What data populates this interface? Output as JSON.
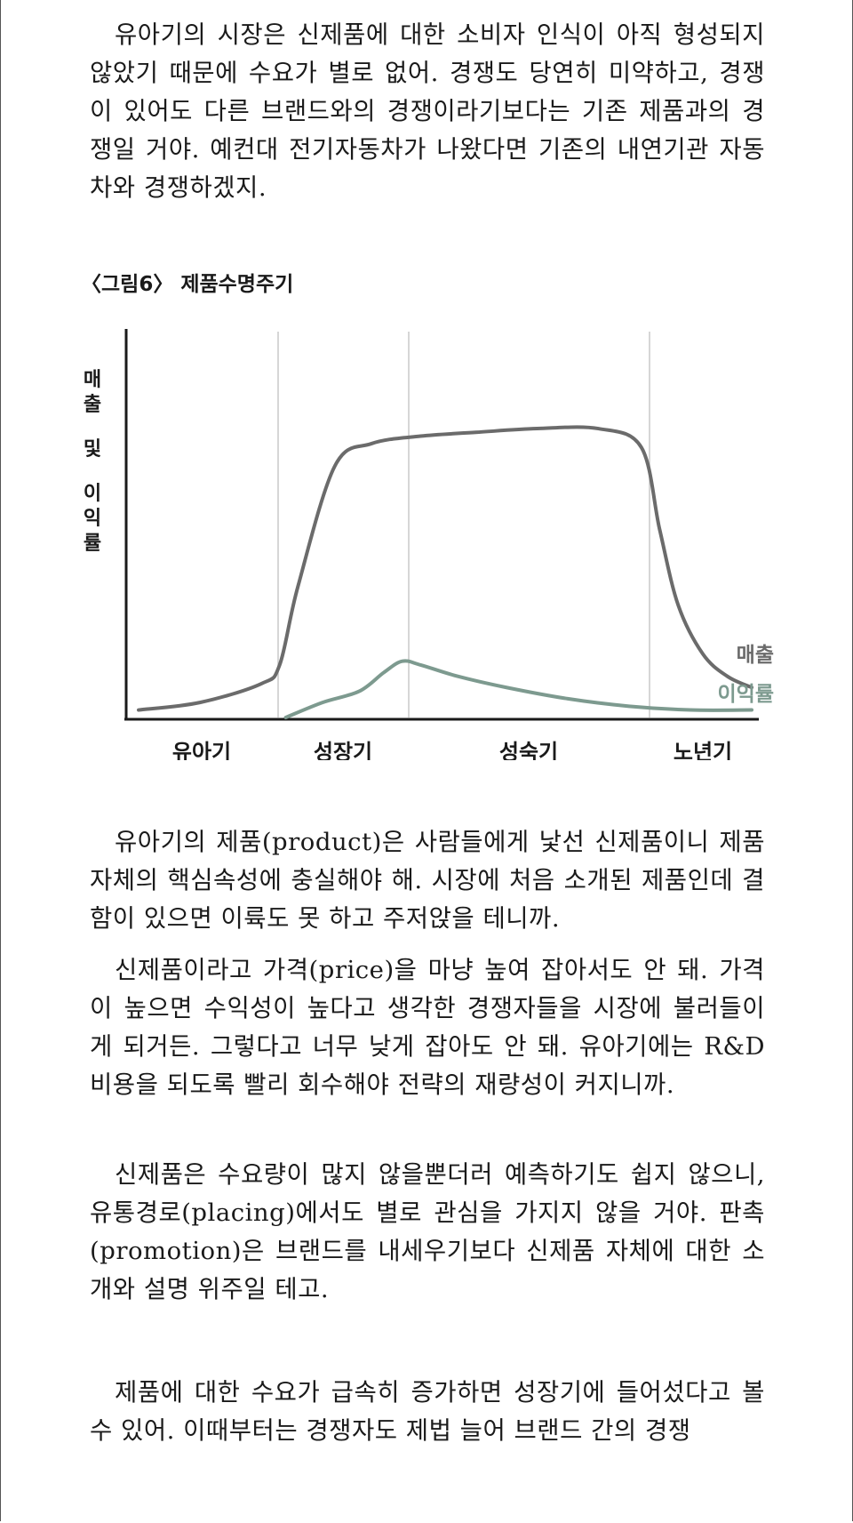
{
  "paragraphs": {
    "p1": "유아기의 시장은 신제품에 대한 소비자 인식이 아직 형성되지 않았기 때문에 수요가 별로 없어. 경쟁도 당연히 미약하고, 경쟁이 있어도 다른 브랜드와의 경쟁이라기보다는 기존 제품과의 경쟁일 거야. 예컨대 전기자동차가 나왔다면 기존의 내연기관 자동차와 경쟁하겠지.",
    "p2": "유아기의 제품(product)은 사람들에게 낯선 신제품이니 제품 자체의 핵심속성에 충실해야 해. 시장에 처음 소개된 제품인데 결함이 있으면 이륙도 못 하고 주저앉을 테니까.",
    "p3": "신제품이라고 가격(price)을 마냥 높여 잡아서도 안 돼. 가격이 높으면 수익성이 높다고 생각한 경쟁자들을 시장에 불러들이게 되거든. 그렇다고 너무 낮게 잡아도 안 돼. 유아기에는 R&D 비용을 되도록 빨리 회수해야 전략의 재량성이 커지니까.",
    "p4": "신제품은 수요량이 많지 않을뿐더러 예측하기도 쉽지 않으니, 유통경로(placing)에서도 별로 관심을 가지지 않을 거야. 판촉(promotion)은 브랜드를 내세우기보다 신제품 자체에 대한 소개와 설명 위주일 테고.",
    "p5": "제품에 대한 수요가 급속히 증가하면 성장기에 들어섰다고 볼 수 있어. 이때부터는 경쟁자도 제법 늘어 브랜드 간의 경쟁"
  },
  "figure": {
    "caption": "〈그림6〉 제품수명주기"
  },
  "chart_data": {
    "type": "line",
    "ylabel_chars": [
      "매",
      "출",
      "및",
      "이",
      "익",
      "률"
    ],
    "stages": [
      "유아기",
      "성장기",
      "성숙기",
      "노년기"
    ],
    "series": [
      {
        "name": "매출",
        "color": "#6b6b6b",
        "x": [
          0,
          10,
          20,
          23,
          26,
          32,
          38,
          46,
          55,
          65,
          75,
          82,
          85,
          88,
          92,
          96,
          100
        ],
        "y": [
          2,
          4,
          9,
          14,
          35,
          67,
          73,
          75,
          76,
          77,
          77,
          72,
          50,
          30,
          17,
          11,
          8
        ]
      },
      {
        "name": "이익률",
        "color": "#7d9a8f",
        "x": [
          24,
          30,
          36,
          40,
          43,
          46,
          52,
          60,
          70,
          80,
          90,
          100
        ],
        "y": [
          0,
          4,
          7,
          12,
          15,
          14,
          11,
          8,
          5,
          3,
          2,
          2
        ]
      }
    ],
    "xlim": [
      0,
      100
    ],
    "ylim": [
      0,
      100
    ],
    "grid": "vertical-stage-dividers",
    "legend": "inline-right"
  }
}
